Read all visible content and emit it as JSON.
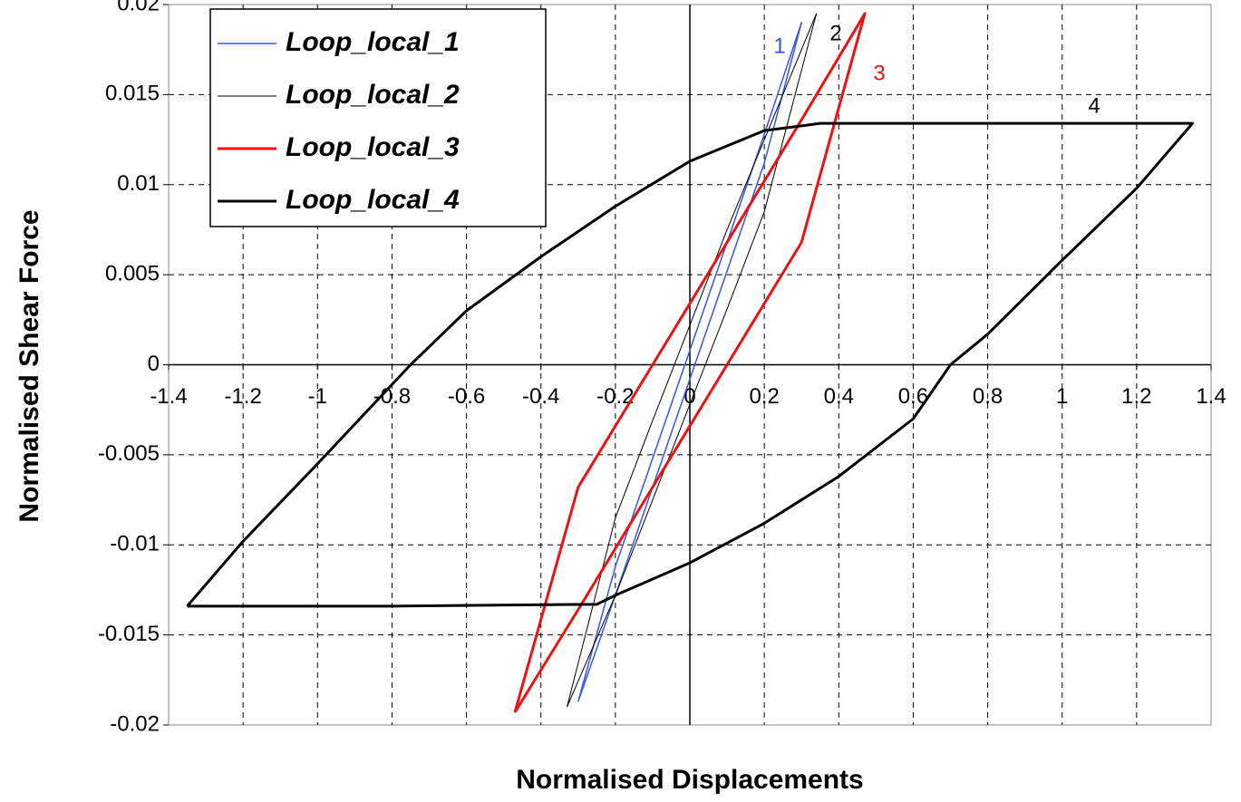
{
  "chart_data": {
    "type": "line",
    "xlabel": "Normalised Displacements",
    "ylabel": "Normalised Shear Force",
    "xlim": [
      -1.4,
      1.4
    ],
    "xticks": [
      -1.4,
      -1.2,
      -1,
      -0.8,
      -0.6,
      -0.4,
      -0.2,
      0,
      0.2,
      0.4,
      0.6,
      0.8,
      1,
      1.2,
      1.4
    ],
    "ylim": [
      -0.02,
      0.02
    ],
    "yticks": [
      -0.02,
      -0.015,
      -0.01,
      -0.005,
      0,
      0.005,
      0.01,
      0.015,
      0.02
    ],
    "grid": true,
    "legend": "upper left",
    "series": [
      {
        "name": "Loop_local_1",
        "color": "#3355ee",
        "line_width": 1.5,
        "x": [
          -0.3,
          -0.2,
          -0.1,
          0,
          0.1,
          0.2,
          0.3,
          0.2,
          0.1,
          0,
          -0.1,
          -0.2,
          -0.3
        ],
        "values": [
          -0.0187,
          -0.0128,
          -0.0068,
          -0.0008,
          0.0052,
          0.0112,
          0.019,
          0.0128,
          0.0068,
          0.0008,
          -0.0052,
          -0.0112,
          -0.0187
        ]
      },
      {
        "name": "Loop_local_2",
        "color": "#000000",
        "line_width": 1,
        "x": [
          -0.33,
          -0.2,
          -0.1,
          0,
          0.1,
          0.2,
          0.34,
          0.2,
          0.1,
          0,
          -0.1,
          -0.2,
          -0.33
        ],
        "values": [
          -0.019,
          -0.0128,
          -0.0075,
          -0.0022,
          0.0031,
          0.0085,
          0.0195,
          0.0125,
          0.0075,
          0.0022,
          -0.0031,
          -0.0085,
          -0.019
        ]
      },
      {
        "name": "Loop_local_3",
        "color": "#ee1111",
        "line_width": 3,
        "x": [
          -0.47,
          -0.3,
          -0.1,
          0,
          0.1,
          0.3,
          0.47,
          0.3,
          0.1,
          0,
          -0.1,
          -0.3,
          -0.47
        ],
        "values": [
          -0.0193,
          -0.0136,
          -0.0068,
          -0.0034,
          0.0,
          0.0068,
          0.0195,
          0.0136,
          0.0068,
          0.0034,
          0.0,
          -0.0068,
          -0.0193
        ]
      },
      {
        "name": "Loop_local_4",
        "color": "#000000",
        "line_width": 3,
        "x": [
          -1.35,
          -0.8,
          -0.25,
          -0.2,
          0,
          0.2,
          0.4,
          0.6,
          0.7,
          0.8,
          1.0,
          1.2,
          1.35,
          0.8,
          0.35,
          0.2,
          0,
          -0.2,
          -0.4,
          -0.6,
          -0.75,
          -0.8,
          -1.0,
          -1.2,
          -1.35
        ],
        "values": [
          -0.0134,
          -0.0134,
          -0.0133,
          -0.0128,
          -0.011,
          -0.0088,
          -0.0062,
          -0.003,
          0,
          0.0017,
          0.0058,
          0.0098,
          0.0134,
          0.0134,
          0.0134,
          0.013,
          0.0113,
          0.0088,
          0.006,
          0.003,
          0,
          -0.0011,
          -0.0055,
          -0.0098,
          -0.0134
        ]
      }
    ],
    "annotations": [
      {
        "text": "1",
        "color": "#3355ee"
      },
      {
        "text": "2",
        "color": "#000000"
      },
      {
        "text": "3",
        "color": "#ee1111"
      },
      {
        "text": "4",
        "color": "#000000"
      }
    ]
  }
}
